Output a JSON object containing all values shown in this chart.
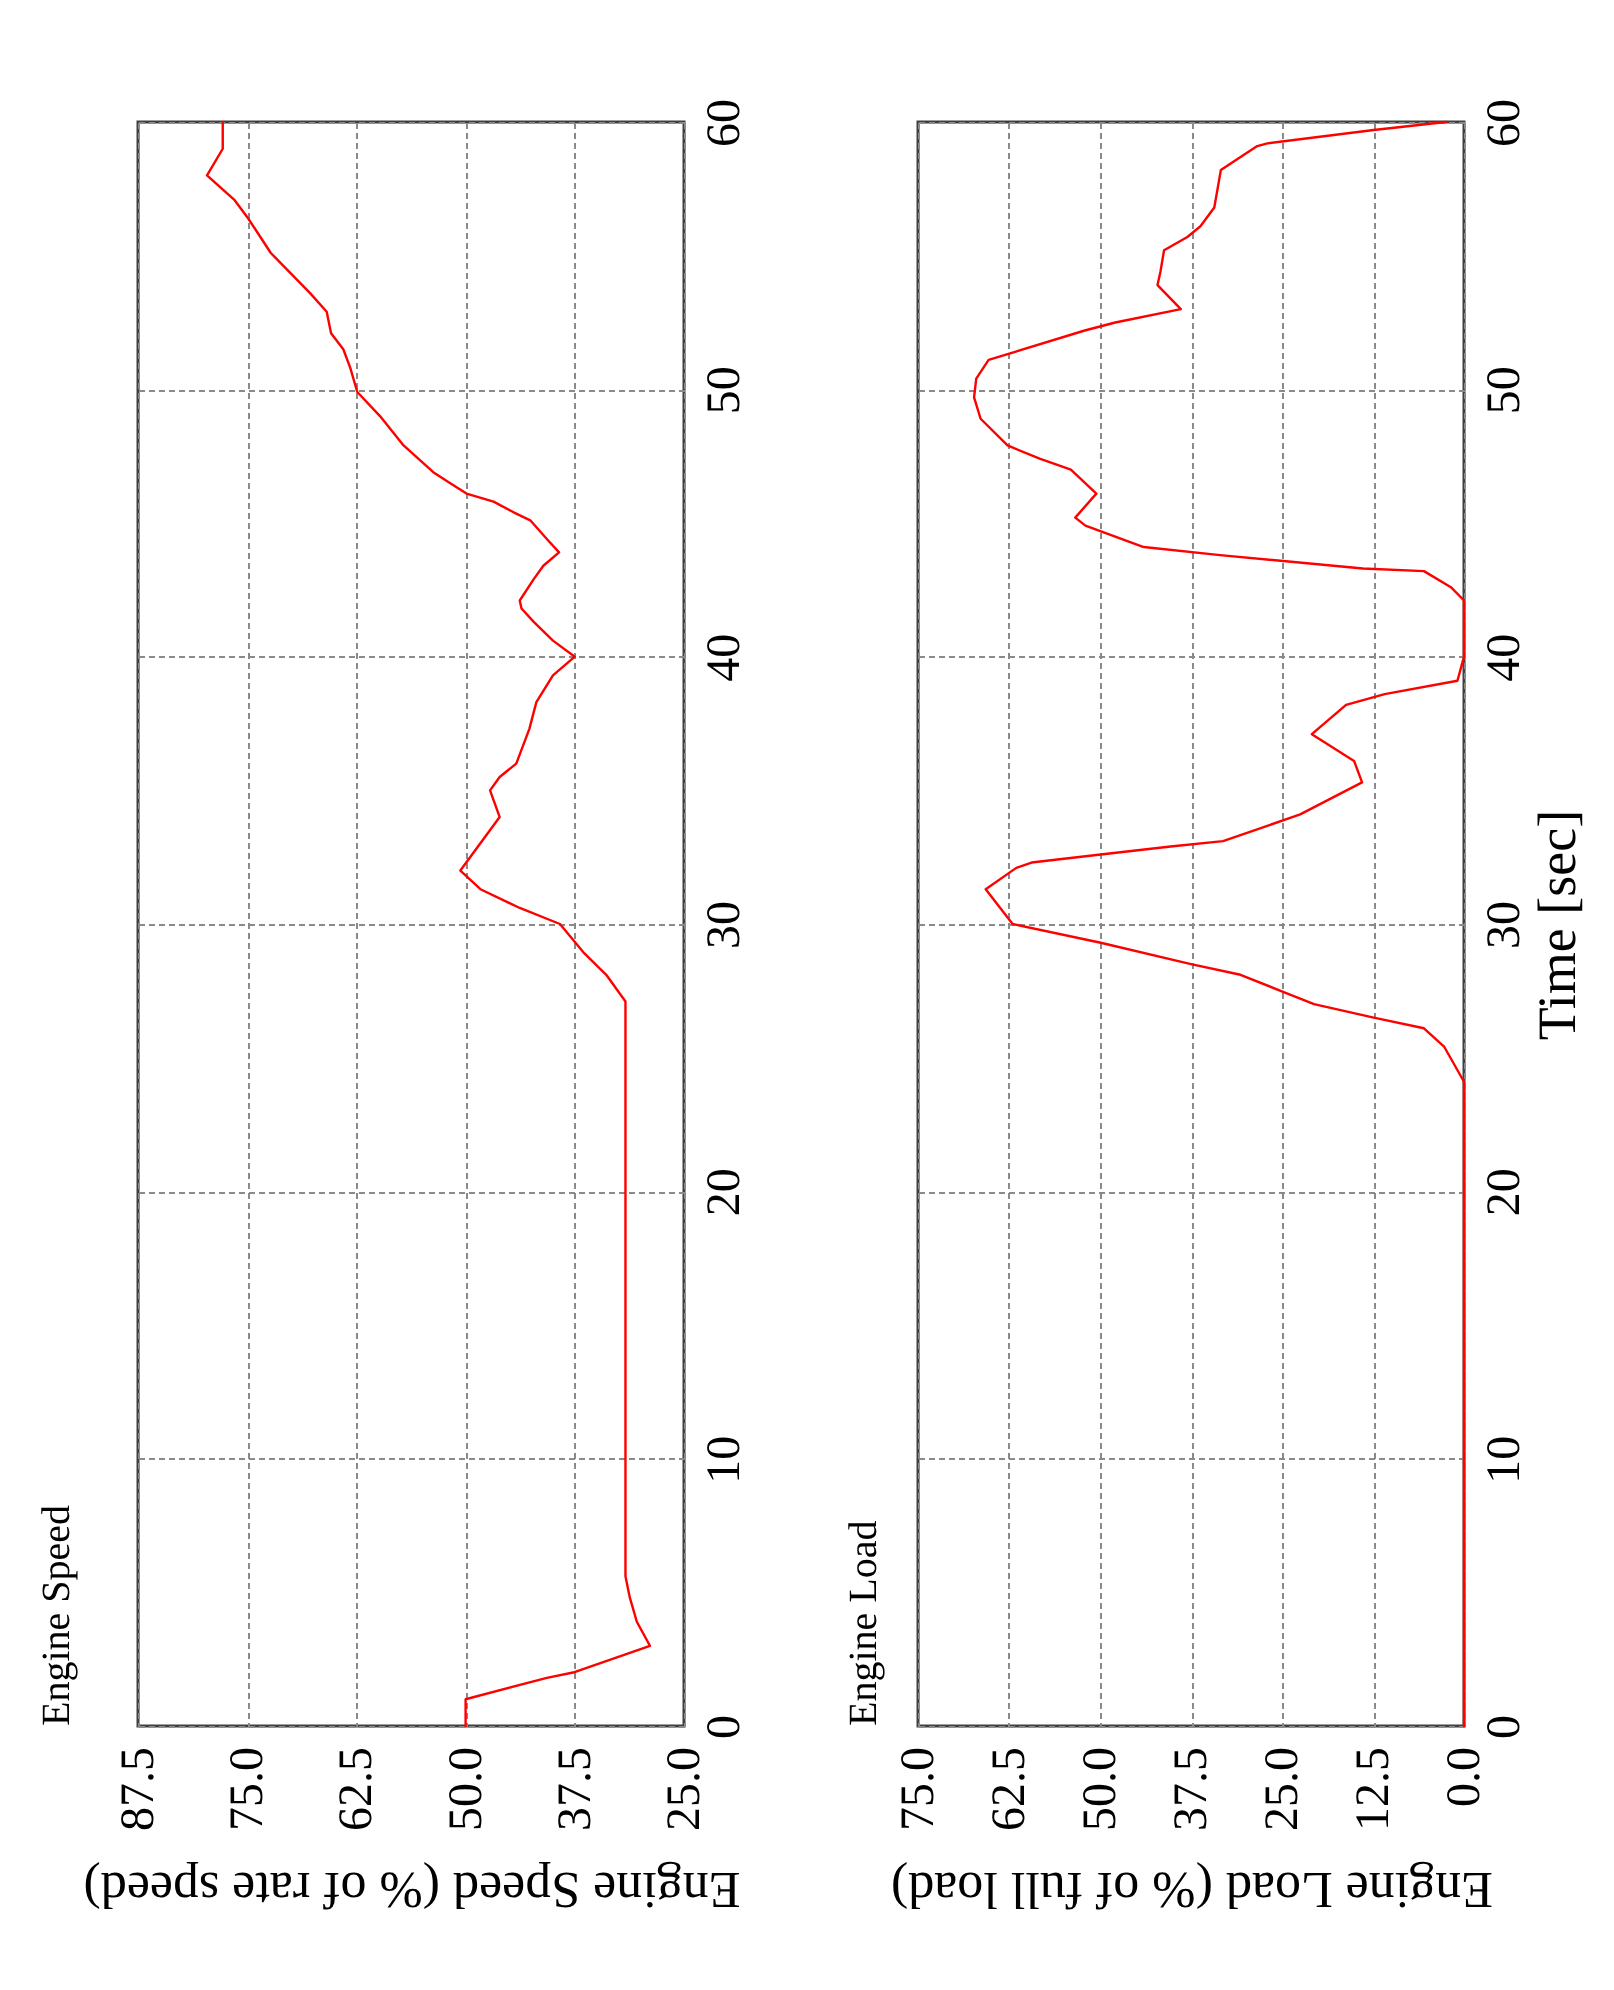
{
  "chart_data": [
    {
      "type": "line",
      "title": "Engine Speed",
      "xlabel": "Engine Speed (% of rate speed)",
      "color": "#ff0000",
      "grid": true,
      "xlim": [
        87.5,
        25.0
      ],
      "xticks": [
        87.5,
        {
          "value": 75,
          "label": "75.0"
        },
        62.5,
        {
          "value": 50,
          "label": "50.0"
        },
        37.5,
        {
          "value": 25,
          "label": "25.0"
        }
      ],
      "ylim": [
        0,
        60
      ],
      "yticks": [
        0,
        10,
        20,
        30,
        40,
        50,
        60
      ],
      "x": [
        50.0,
        50.0,
        40.7,
        37.7,
        28.9,
        30.4,
        31.2,
        31.7,
        31.7,
        33.9,
        36.4,
        39.2,
        43.8,
        48.3,
        50.6,
        46.1,
        47.2,
        46.1,
        44.2,
        42.7,
        41.9,
        40.0,
        37.5,
        40.0,
        42.2,
        43.6,
        43.8,
        42.2,
        41.1,
        39.3,
        40.7,
        42.6,
        44.5,
        46.8,
        49.9,
        51.8,
        53.7,
        57.1,
        59.8,
        62.4,
        63.2,
        64.0,
        65.4,
        65.9,
        67.8,
        72.3,
        74.9,
        76.5,
        79.6,
        77.8,
        77.8
      ],
      "values": [
        0,
        1.0,
        1.8,
        2.0,
        3.0,
        3.9,
        4.8,
        5.6,
        27.1,
        28.1,
        28.9,
        30.0,
        30.6,
        31.3,
        32.0,
        34.0,
        35.0,
        35.5,
        36.0,
        37.3,
        38.3,
        39.3,
        40.0,
        40.6,
        41.3,
        41.8,
        42.1,
        42.9,
        43.4,
        43.9,
        44.4,
        45.1,
        45.4,
        45.8,
        46.1,
        46.5,
        46.9,
        47.9,
        49.0,
        49.9,
        50.8,
        51.5,
        52.1,
        52.9,
        53.6,
        55.1,
        56.4,
        57.1,
        58.0,
        59.0,
        60.0
      ]
    },
    {
      "type": "line",
      "title": "Engine Load",
      "xlabel": "Engine Load (% of full load)",
      "ylabel": "Time [sec]",
      "color": "#ff0000",
      "grid": true,
      "xlim": [
        75.0,
        0.0
      ],
      "xticks": [
        {
          "value": 75,
          "label": "75.0"
        },
        62.5,
        {
          "value": 50,
          "label": "50.0"
        },
        37.5,
        {
          "value": 25,
          "label": "25.0"
        },
        12.5,
        {
          "value": 0,
          "label": "0.0"
        }
      ],
      "ylim": [
        0,
        60
      ],
      "yticks": [
        0,
        10,
        20,
        30,
        40,
        50,
        60
      ],
      "x": [
        0,
        0,
        2.7,
        5.5,
        12.4,
        20.6,
        25.2,
        30.7,
        37.5,
        49.9,
        62.0,
        65.7,
        61.5,
        59.4,
        49.9,
        40.3,
        33.1,
        22.5,
        14.0,
        15.1,
        20.9,
        16.2,
        10.9,
        0.9,
        0,
        0,
        1.8,
        5.5,
        13.9,
        33.5,
        44.0,
        52.0,
        53.4,
        50.5,
        54.0,
        58.2,
        62.7,
        66.4,
        67.3,
        67.0,
        65.3,
        52.1,
        47.9,
        38.9,
        42.1,
        41.7,
        41.2,
        38.0,
        36.2,
        34.3,
        33.4,
        28.4,
        27.0,
        12.4,
        2.5
      ],
      "values": [
        0,
        24.1,
        25.4,
        26.1,
        26.5,
        27.0,
        27.5,
        28.1,
        28.5,
        29.3,
        30.0,
        31.3,
        32.1,
        32.3,
        32.6,
        32.9,
        33.1,
        34.1,
        35.3,
        36.1,
        37.1,
        38.2,
        38.6,
        39.1,
        40.0,
        42.1,
        42.6,
        43.2,
        43.3,
        43.8,
        44.1,
        44.9,
        45.2,
        46.1,
        47.0,
        47.4,
        47.9,
        48.9,
        49.7,
        50.4,
        51.1,
        52.2,
        52.5,
        53.0,
        53.9,
        54.4,
        55.2,
        55.7,
        56.1,
        56.8,
        58.2,
        59.1,
        59.2,
        59.7,
        60.0
      ]
    }
  ]
}
